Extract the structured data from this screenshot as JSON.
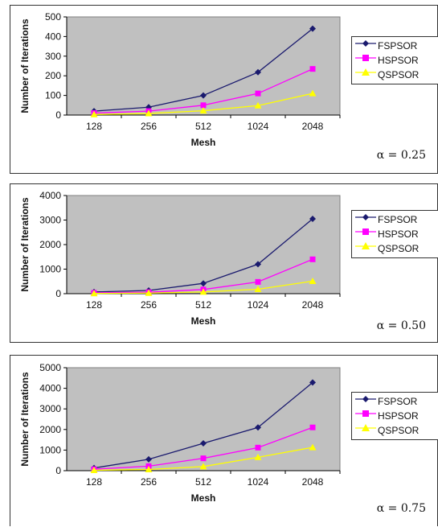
{
  "colors": {
    "FSPSOR": "#1a1a6e",
    "HSPSOR": "#ff00ff",
    "QSPSOR": "#ffff00",
    "plot_bg": "#c0c0c0"
  },
  "chart_data": [
    {
      "type": "line",
      "xlabel": "Mesh",
      "ylabel": "Number of Iterations",
      "categories": [
        "128",
        "256",
        "512",
        "1024",
        "2048"
      ],
      "ylim": [
        0,
        500
      ],
      "yticks": [
        0,
        100,
        200,
        300,
        400,
        500
      ],
      "grid": false,
      "legend": "right",
      "series": [
        {
          "name": "FSPSOR",
          "values": [
            20,
            40,
            100,
            218,
            440
          ]
        },
        {
          "name": "HSPSOR",
          "values": [
            10,
            20,
            50,
            110,
            235
          ]
        },
        {
          "name": "QSPSOR",
          "values": [
            3,
            8,
            22,
            48,
            110
          ]
        }
      ],
      "annotation": "α = 0.25"
    },
    {
      "type": "line",
      "xlabel": "Mesh",
      "ylabel": "Number of Iterations",
      "categories": [
        "128",
        "256",
        "512",
        "1024",
        "2048"
      ],
      "ylim": [
        0,
        4000
      ],
      "yticks": [
        0,
        1000,
        2000,
        3000,
        4000
      ],
      "grid": false,
      "legend": "right",
      "series": [
        {
          "name": "FSPSOR",
          "values": [
            70,
            130,
            420,
            1200,
            3050
          ]
        },
        {
          "name": "HSPSOR",
          "values": [
            35,
            60,
            170,
            480,
            1400
          ]
        },
        {
          "name": "QSPSOR",
          "values": [
            10,
            25,
            70,
            180,
            510
          ]
        }
      ],
      "annotation": "α = 0.50"
    },
    {
      "type": "line",
      "xlabel": "Mesh",
      "ylabel": "Number of Iterations",
      "categories": [
        "128",
        "256",
        "512",
        "1024",
        "2048"
      ],
      "ylim": [
        0,
        5000
      ],
      "yticks": [
        0,
        1000,
        2000,
        3000,
        4000,
        5000
      ],
      "grid": false,
      "legend": "right",
      "series": [
        {
          "name": "FSPSOR",
          "values": [
            130,
            550,
            1330,
            2100,
            4280
          ]
        },
        {
          "name": "HSPSOR",
          "values": [
            70,
            220,
            600,
            1120,
            2100
          ]
        },
        {
          "name": "QSPSOR",
          "values": [
            20,
            60,
            200,
            650,
            1130
          ]
        }
      ],
      "annotation": "α = 0.75"
    }
  ]
}
